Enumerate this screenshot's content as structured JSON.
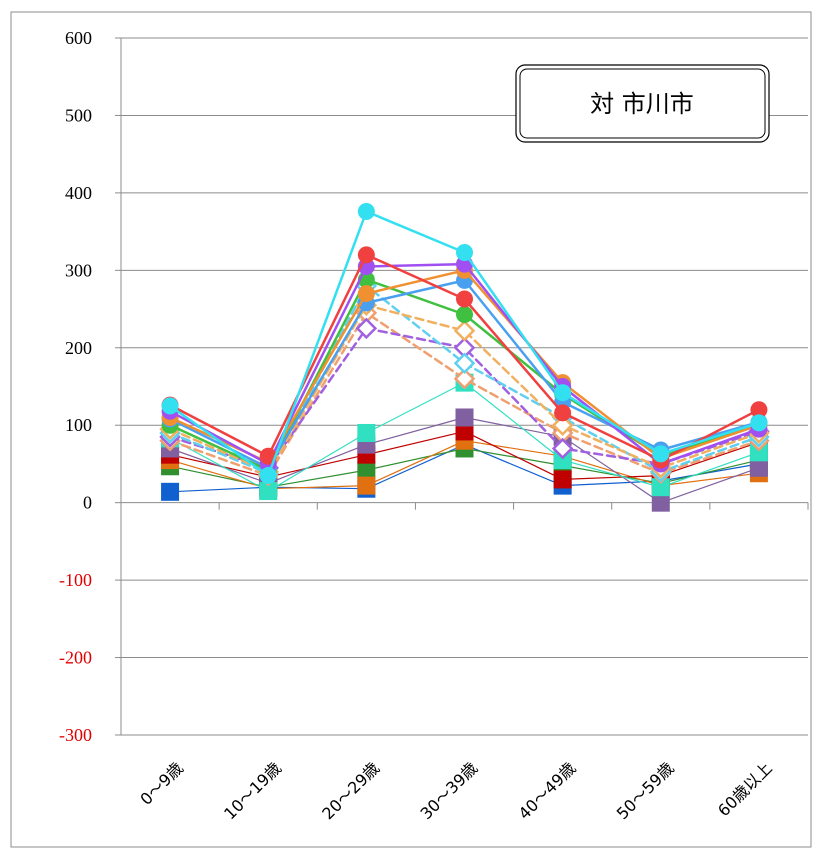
{
  "chart_data": {
    "type": "line",
    "title": "",
    "xlabel": "",
    "ylabel": "",
    "ylim": [
      -300,
      600
    ],
    "yticks": [
      600,
      500,
      400,
      300,
      200,
      100,
      0,
      -100,
      -200,
      -300
    ],
    "negative_tick_color": "#e00000",
    "grid": "horizontal",
    "legend": "none",
    "annotation": "対 市川市",
    "categories": [
      "0～9歳",
      "10～19歳",
      "20～29歳",
      "30～39歳",
      "40～49歳",
      "50～59歳",
      "60歳以上"
    ],
    "series": [
      {
        "color": "#33e0f0",
        "marker": "circle",
        "style": "solid",
        "width": 2.5,
        "values": [
          125,
          35,
          376,
          323,
          142,
          63,
          103
        ]
      },
      {
        "color": "#f04040",
        "marker": "circle",
        "style": "solid",
        "width": 2.5,
        "values": [
          126,
          60,
          320,
          263,
          116,
          55,
          120
        ]
      },
      {
        "color": "#a050f0",
        "marker": "circle",
        "style": "solid",
        "width": 2.5,
        "values": [
          118,
          50,
          305,
          308,
          150,
          50,
          95
        ]
      },
      {
        "color": "#f09030",
        "marker": "circle",
        "style": "solid",
        "width": 2.5,
        "values": [
          110,
          52,
          270,
          300,
          155,
          57,
          100
        ]
      },
      {
        "color": "#4aa0f0",
        "marker": "circle",
        "style": "solid",
        "width": 2.5,
        "values": [
          108,
          45,
          258,
          287,
          130,
          68,
          104
        ]
      },
      {
        "color": "#40c040",
        "marker": "circle",
        "style": "solid",
        "width": 2.5,
        "values": [
          100,
          42,
          288,
          243,
          140,
          60,
          103
        ]
      },
      {
        "color": "#f0b060",
        "marker": "diamond",
        "style": "dashed",
        "width": 2.5,
        "values": [
          95,
          40,
          255,
          222,
          100,
          45,
          90
        ]
      },
      {
        "color": "#60d0f0",
        "marker": "diamond",
        "style": "dashed",
        "width": 2.5,
        "values": [
          90,
          38,
          280,
          180,
          110,
          40,
          85
        ]
      },
      {
        "color": "#a060e0",
        "marker": "diamond",
        "style": "dashed",
        "width": 2.5,
        "values": [
          85,
          45,
          225,
          200,
          70,
          50,
          92
        ]
      },
      {
        "color": "#f0a070",
        "marker": "diamond",
        "style": "dashed",
        "width": 2.5,
        "values": [
          80,
          35,
          245,
          160,
          90,
          38,
          80
        ]
      },
      {
        "color": "#30e0c0",
        "marker": "square",
        "style": "solid",
        "width": 1.2,
        "values": [
          83,
          15,
          90,
          155,
          55,
          20,
          65
        ]
      },
      {
        "color": "#8060a0",
        "marker": "square",
        "style": "solid",
        "width": 1.2,
        "values": [
          70,
          25,
          75,
          110,
          85,
          0,
          45
        ]
      },
      {
        "color": "#c00000",
        "marker": "square",
        "style": "solid",
        "width": 1.2,
        "values": [
          62,
          33,
          62,
          92,
          30,
          35,
          78
        ]
      },
      {
        "color": "#e07010",
        "marker": "square",
        "style": "solid",
        "width": 1.2,
        "values": [
          55,
          18,
          22,
          80,
          60,
          22,
          38
        ]
      },
      {
        "color": "#309030",
        "marker": "square",
        "style": "solid",
        "width": 1.2,
        "values": [
          47,
          20,
          42,
          70,
          48,
          25,
          55
        ]
      },
      {
        "color": "#1060d0",
        "marker": "square",
        "style": "solid",
        "width": 1.2,
        "values": [
          14,
          20,
          18,
          75,
          22,
          28,
          50
        ]
      }
    ]
  }
}
